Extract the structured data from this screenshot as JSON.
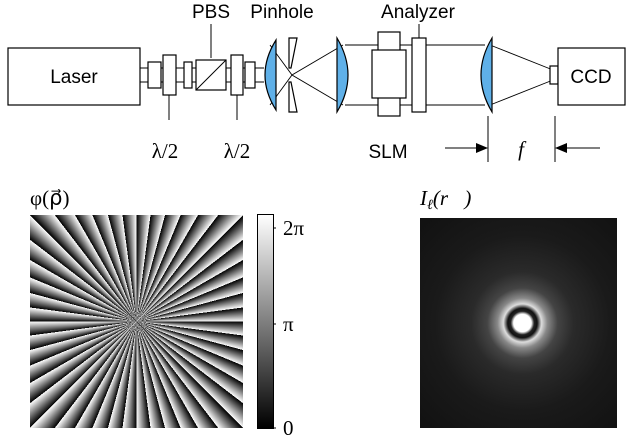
{
  "labels": {
    "pbs": "PBS",
    "pinhole": "Pinhole",
    "analyzer": "Analyzer",
    "laser": "Laser",
    "ccd": "CCD",
    "half_wave_1": "λ/2",
    "half_wave_2": "λ/2",
    "slm": "SLM",
    "focal_length": "f"
  },
  "phase_panel": {
    "title": "φ(ρ⃗)",
    "colorbar_ticks": [
      "2π",
      "π",
      "0"
    ]
  },
  "intensity_panel": {
    "title_symbol": "I",
    "title_subscript": "ℓ",
    "title_argument": "(r⃗)"
  }
}
